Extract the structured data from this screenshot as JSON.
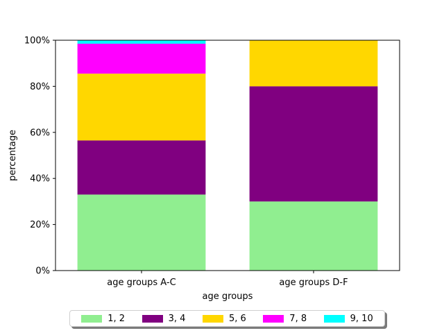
{
  "chart_data": {
    "type": "bar",
    "stacked": true,
    "categories": [
      "age groups A-C",
      "age groups D-F"
    ],
    "series": [
      {
        "name": "1, 2",
        "values": [
          33,
          30
        ],
        "color": "#90ee90"
      },
      {
        "name": "3, 4",
        "values": [
          23.5,
          50
        ],
        "color": "#800080"
      },
      {
        "name": "5, 6",
        "values": [
          29,
          20
        ],
        "color": "#ffd700"
      },
      {
        "name": "7, 8",
        "values": [
          13,
          0
        ],
        "color": "#ff00ff"
      },
      {
        "name": "9, 10",
        "values": [
          1.5,
          0
        ],
        "color": "#00ffff"
      }
    ],
    "xlabel": "age groups",
    "ylabel": "percentage",
    "ylim": [
      0,
      100
    ],
    "yticks": [
      "0%",
      "20%",
      "40%",
      "60%",
      "80%",
      "100%"
    ],
    "grid": false,
    "legend_position": "bottom-center"
  }
}
